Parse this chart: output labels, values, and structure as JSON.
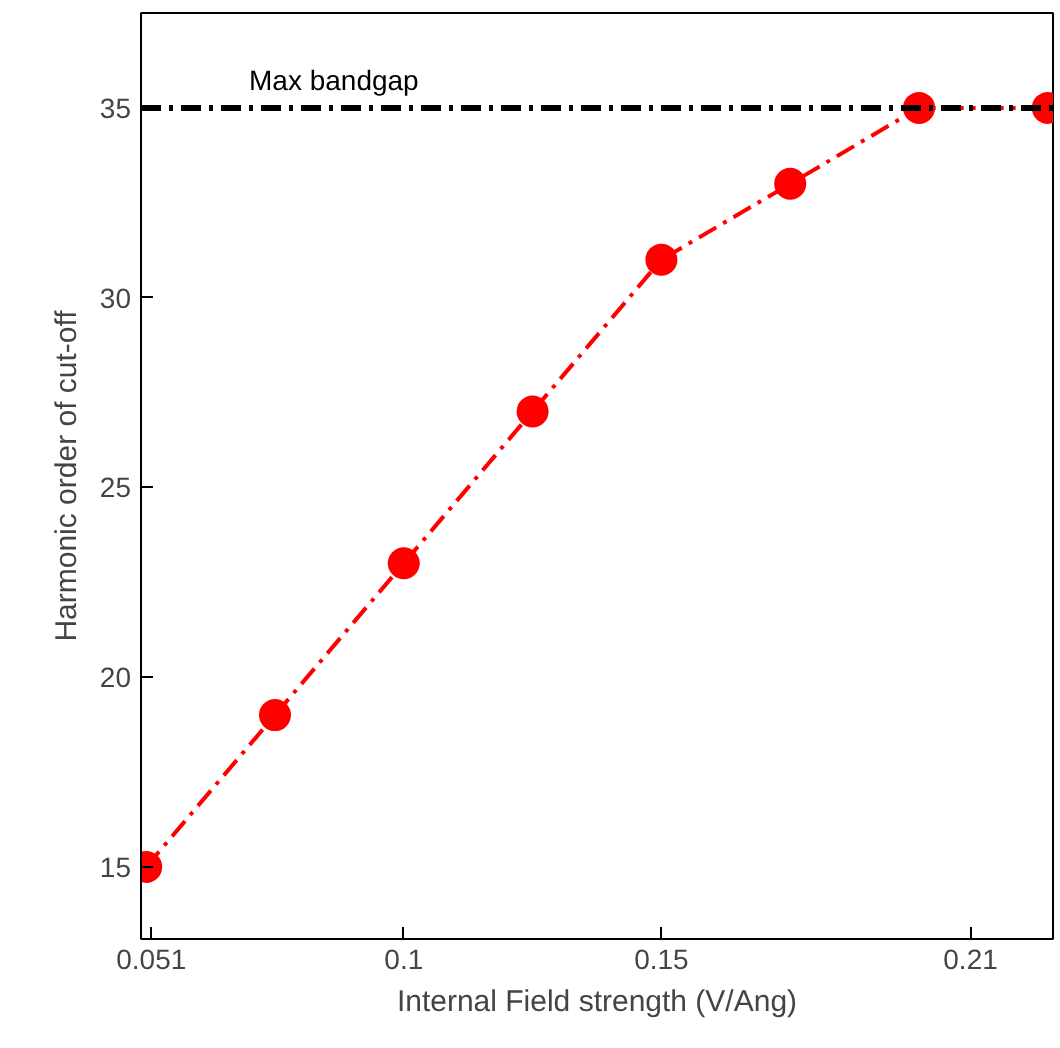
{
  "chart_data": {
    "type": "line",
    "xlabel": "Internal Field strength (V/Ang)",
    "ylabel": "Harmonic order of cut-off",
    "x": [
      0.05,
      0.075,
      0.1,
      0.125,
      0.15,
      0.175,
      0.2,
      0.225
    ],
    "series": [
      {
        "color": "#ff0000",
        "values": [
          15,
          19,
          23,
          27,
          31,
          33,
          35,
          35
        ]
      }
    ],
    "xlim": [
      0.049,
      0.226
    ],
    "ylim": [
      13.1,
      37.5
    ],
    "xticks": [
      0.051,
      0.1,
      0.15,
      0.21
    ],
    "yticks": [
      15,
      20,
      25,
      30,
      35
    ],
    "ref_lines": [
      {
        "axis": "y",
        "value": 35,
        "label": "Max bandgap",
        "color": "#000000",
        "line_style": "dashdot"
      }
    ],
    "marker": "circle",
    "line_style": "dashdot",
    "grid": false
  }
}
